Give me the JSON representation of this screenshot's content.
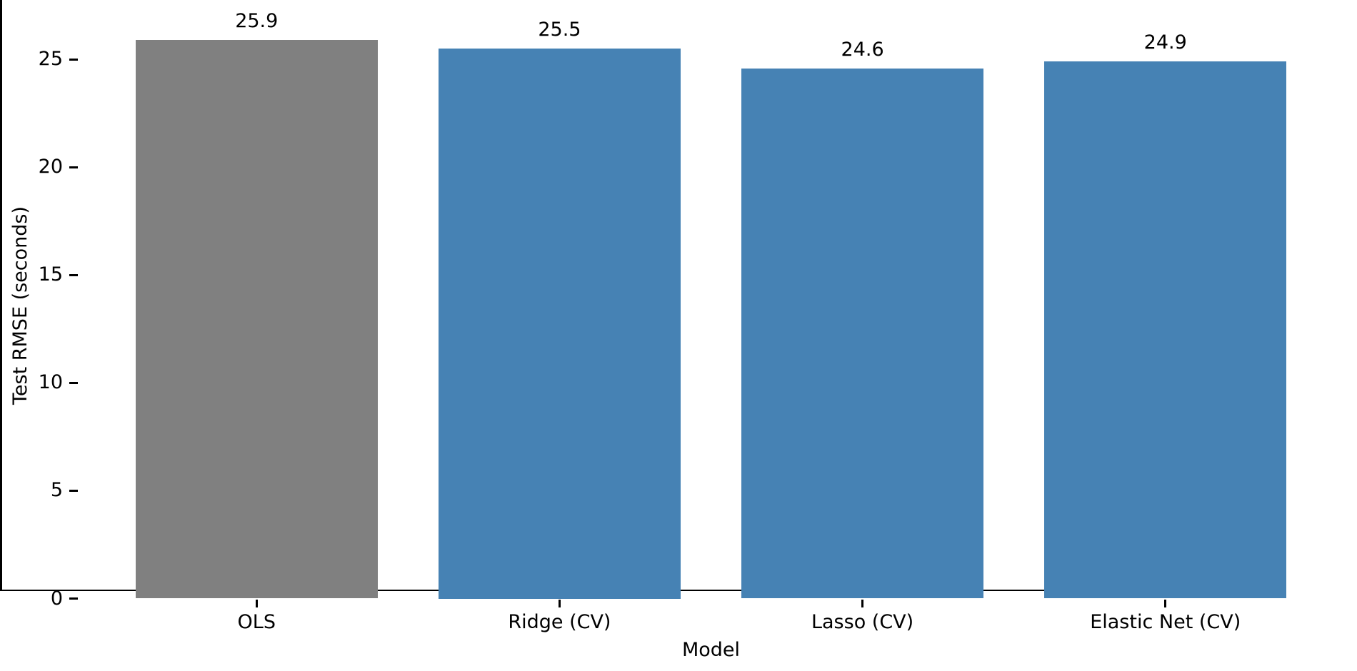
{
  "chart_data": {
    "type": "bar",
    "categories": [
      "OLS",
      "Ridge (CV)",
      "Lasso (CV)",
      "Elastic Net (CV)"
    ],
    "values": [
      25.9,
      25.5,
      24.6,
      24.9
    ],
    "value_labels": [
      "25.9",
      "25.5",
      "24.6",
      "24.9"
    ],
    "xlabel": "Model",
    "ylabel": "Test RMSE (seconds)",
    "yticks": [
      0,
      5,
      10,
      15,
      20,
      25
    ],
    "ylim": [
      0,
      27.2
    ],
    "xlim": [
      -0.59,
      3.59
    ],
    "bar_relative_width": 0.8,
    "grid": false,
    "legend": null,
    "bar_colors": [
      "#808080",
      "#4682B4",
      "#4682B4",
      "#4682B4"
    ],
    "axis_color": "#000000",
    "text_color": "#000000",
    "background_color": "#FFFFFF"
  }
}
